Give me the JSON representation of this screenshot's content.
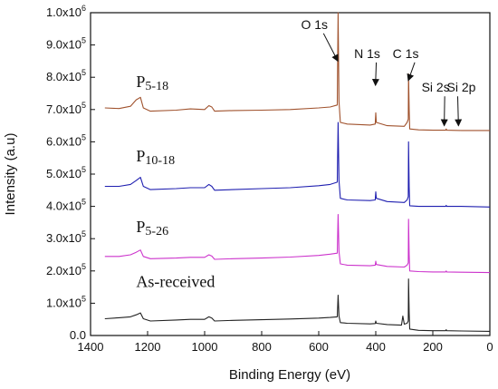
{
  "chart_data": {
    "type": "line",
    "xlabel": "Binding Energy (eV)",
    "ylabel": "Intensity (a.u)",
    "xlim": [
      1400,
      0
    ],
    "ylim": [
      0,
      1000000
    ],
    "x_reversed": true,
    "x_ticks": [
      {
        "value": 1400,
        "label": "1400"
      },
      {
        "value": 1200,
        "label": "1200"
      },
      {
        "value": 1000,
        "label": "1000"
      },
      {
        "value": 800,
        "label": "800"
      },
      {
        "value": 600,
        "label": "600"
      },
      {
        "value": 400,
        "label": "400"
      },
      {
        "value": 200,
        "label": "200"
      },
      {
        "value": 0,
        "label": "0"
      }
    ],
    "y_ticks": [
      {
        "value": 0,
        "mant": "0.0",
        "exp": ""
      },
      {
        "value": 100000,
        "mant": "1.0x10",
        "exp": "5"
      },
      {
        "value": 200000,
        "mant": "2.0x10",
        "exp": "5"
      },
      {
        "value": 300000,
        "mant": "3.0x10",
        "exp": "5"
      },
      {
        "value": 400000,
        "mant": "4.0x10",
        "exp": "5"
      },
      {
        "value": 500000,
        "mant": "5.0x10",
        "exp": "5"
      },
      {
        "value": 600000,
        "mant": "6.0x10",
        "exp": "5"
      },
      {
        "value": 700000,
        "mant": "7.0x10",
        "exp": "5"
      },
      {
        "value": 800000,
        "mant": "8.0x10",
        "exp": "5"
      },
      {
        "value": 900000,
        "mant": "9.0x10",
        "exp": "5"
      },
      {
        "value": 1000000,
        "mant": "1.0x10",
        "exp": "6"
      }
    ],
    "series": [
      {
        "name": "P5-18",
        "base": "P",
        "sub": "5-18",
        "color": "#a0522d",
        "label_at": [
          1240,
          770000
        ],
        "points": [
          [
            1350,
            705000
          ],
          [
            1300,
            703000
          ],
          [
            1260,
            710000
          ],
          [
            1240,
            730000
          ],
          [
            1225,
            738000
          ],
          [
            1215,
            705000
          ],
          [
            1190,
            695000
          ],
          [
            1100,
            698000
          ],
          [
            1050,
            702000
          ],
          [
            1000,
            700000
          ],
          [
            985,
            712000
          ],
          [
            975,
            708000
          ],
          [
            965,
            695000
          ],
          [
            900,
            697000
          ],
          [
            800,
            698000
          ],
          [
            700,
            700000
          ],
          [
            600,
            705000
          ],
          [
            560,
            708000
          ],
          [
            535,
            714000
          ],
          [
            532,
            1000000
          ],
          [
            529,
            725000
          ],
          [
            524,
            660000
          ],
          [
            500,
            655000
          ],
          [
            420,
            652000
          ],
          [
            402,
            655000
          ],
          [
            400,
            690000
          ],
          [
            398,
            660000
          ],
          [
            360,
            650000
          ],
          [
            300,
            648000
          ],
          [
            290,
            660000
          ],
          [
            286,
            670000
          ],
          [
            285,
            810000
          ],
          [
            283,
            700000
          ],
          [
            281,
            640000
          ],
          [
            250,
            637000
          ],
          [
            200,
            636000
          ],
          [
            155,
            636000
          ],
          [
            153,
            640000
          ],
          [
            151,
            636000
          ],
          [
            100,
            635000
          ],
          [
            50,
            635000
          ],
          [
            0,
            635000
          ]
        ]
      },
      {
        "name": "P10-18",
        "base": "P",
        "sub": "10-18",
        "color": "#1f1fb0",
        "label_at": [
          1240,
          540000
        ],
        "points": [
          [
            1350,
            462000
          ],
          [
            1300,
            462000
          ],
          [
            1260,
            468000
          ],
          [
            1240,
            480000
          ],
          [
            1225,
            490000
          ],
          [
            1215,
            462000
          ],
          [
            1190,
            452000
          ],
          [
            1100,
            455000
          ],
          [
            1050,
            458000
          ],
          [
            1000,
            458000
          ],
          [
            985,
            468000
          ],
          [
            975,
            462000
          ],
          [
            965,
            450000
          ],
          [
            900,
            452000
          ],
          [
            800,
            455000
          ],
          [
            700,
            458000
          ],
          [
            600,
            464000
          ],
          [
            560,
            468000
          ],
          [
            535,
            475000
          ],
          [
            532,
            660000
          ],
          [
            529,
            480000
          ],
          [
            524,
            425000
          ],
          [
            500,
            420000
          ],
          [
            420,
            418000
          ],
          [
            402,
            420000
          ],
          [
            400,
            445000
          ],
          [
            398,
            425000
          ],
          [
            360,
            415000
          ],
          [
            300,
            412000
          ],
          [
            290,
            420000
          ],
          [
            286,
            430000
          ],
          [
            285,
            600000
          ],
          [
            283,
            460000
          ],
          [
            281,
            402000
          ],
          [
            250,
            400000
          ],
          [
            200,
            400000
          ],
          [
            155,
            400000
          ],
          [
            153,
            403000
          ],
          [
            151,
            400000
          ],
          [
            100,
            400000
          ],
          [
            0,
            398000
          ]
        ]
      },
      {
        "name": "P5-26",
        "base": "P",
        "sub": "5-26",
        "color": "#cc33cc",
        "label_at": [
          1240,
          320000
        ],
        "points": [
          [
            1350,
            245000
          ],
          [
            1300,
            245000
          ],
          [
            1260,
            250000
          ],
          [
            1240,
            258000
          ],
          [
            1225,
            265000
          ],
          [
            1215,
            245000
          ],
          [
            1190,
            238000
          ],
          [
            1100,
            240000
          ],
          [
            1050,
            242000
          ],
          [
            1000,
            242000
          ],
          [
            985,
            250000
          ],
          [
            975,
            246000
          ],
          [
            965,
            236000
          ],
          [
            900,
            238000
          ],
          [
            800,
            240000
          ],
          [
            700,
            243000
          ],
          [
            600,
            248000
          ],
          [
            560,
            252000
          ],
          [
            535,
            255000
          ],
          [
            532,
            375000
          ],
          [
            529,
            260000
          ],
          [
            524,
            222000
          ],
          [
            500,
            218000
          ],
          [
            420,
            216000
          ],
          [
            402,
            218000
          ],
          [
            400,
            230000
          ],
          [
            398,
            220000
          ],
          [
            360,
            214000
          ],
          [
            300,
            212000
          ],
          [
            290,
            218000
          ],
          [
            286,
            225000
          ],
          [
            285,
            360000
          ],
          [
            283,
            250000
          ],
          [
            281,
            200000
          ],
          [
            250,
            198000
          ],
          [
            200,
            197000
          ],
          [
            155,
            197000
          ],
          [
            153,
            200000
          ],
          [
            151,
            197000
          ],
          [
            100,
            196000
          ],
          [
            0,
            195000
          ]
        ]
      },
      {
        "name": "As-received",
        "base": "As-received",
        "sub": "",
        "color": "#222222",
        "label_at": [
          1240,
          150000
        ],
        "points": [
          [
            1350,
            52000
          ],
          [
            1300,
            55000
          ],
          [
            1260,
            58000
          ],
          [
            1240,
            64000
          ],
          [
            1225,
            70000
          ],
          [
            1215,
            52000
          ],
          [
            1190,
            45000
          ],
          [
            1100,
            48000
          ],
          [
            1050,
            50000
          ],
          [
            1000,
            50000
          ],
          [
            985,
            58000
          ],
          [
            975,
            54000
          ],
          [
            965,
            45000
          ],
          [
            900,
            47000
          ],
          [
            800,
            49000
          ],
          [
            700,
            51000
          ],
          [
            600,
            54000
          ],
          [
            560,
            56000
          ],
          [
            535,
            58000
          ],
          [
            532,
            125000
          ],
          [
            529,
            60000
          ],
          [
            524,
            40000
          ],
          [
            500,
            38000
          ],
          [
            420,
            36000
          ],
          [
            402,
            37000
          ],
          [
            400,
            45000
          ],
          [
            398,
            38000
          ],
          [
            360,
            34000
          ],
          [
            310,
            32000
          ],
          [
            305,
            60000
          ],
          [
            300,
            35000
          ],
          [
            290,
            38000
          ],
          [
            286,
            45000
          ],
          [
            285,
            175000
          ],
          [
            283,
            70000
          ],
          [
            281,
            20000
          ],
          [
            250,
            16000
          ],
          [
            200,
            15000
          ],
          [
            155,
            15000
          ],
          [
            153,
            18000
          ],
          [
            151,
            15000
          ],
          [
            100,
            14000
          ],
          [
            0,
            13000
          ]
        ]
      }
    ],
    "annotations": [
      {
        "text": "O 1s",
        "label_at": [
          615,
          950000
        ],
        "arrow_to": [
          533,
          850000
        ]
      },
      {
        "text": "N 1s",
        "label_at": [
          430,
          860000
        ],
        "arrow_to": [
          401,
          775000
        ]
      },
      {
        "text": "C 1s",
        "label_at": [
          295,
          860000
        ],
        "arrow_to": [
          286,
          790000
        ]
      },
      {
        "text": "Si 2s",
        "label_at": [
          190,
          755000
        ],
        "arrow_to": [
          160,
          650000
        ]
      },
      {
        "text": "Si 2p",
        "label_at": [
          100,
          755000
        ],
        "arrow_to": [
          110,
          650000
        ]
      }
    ]
  }
}
